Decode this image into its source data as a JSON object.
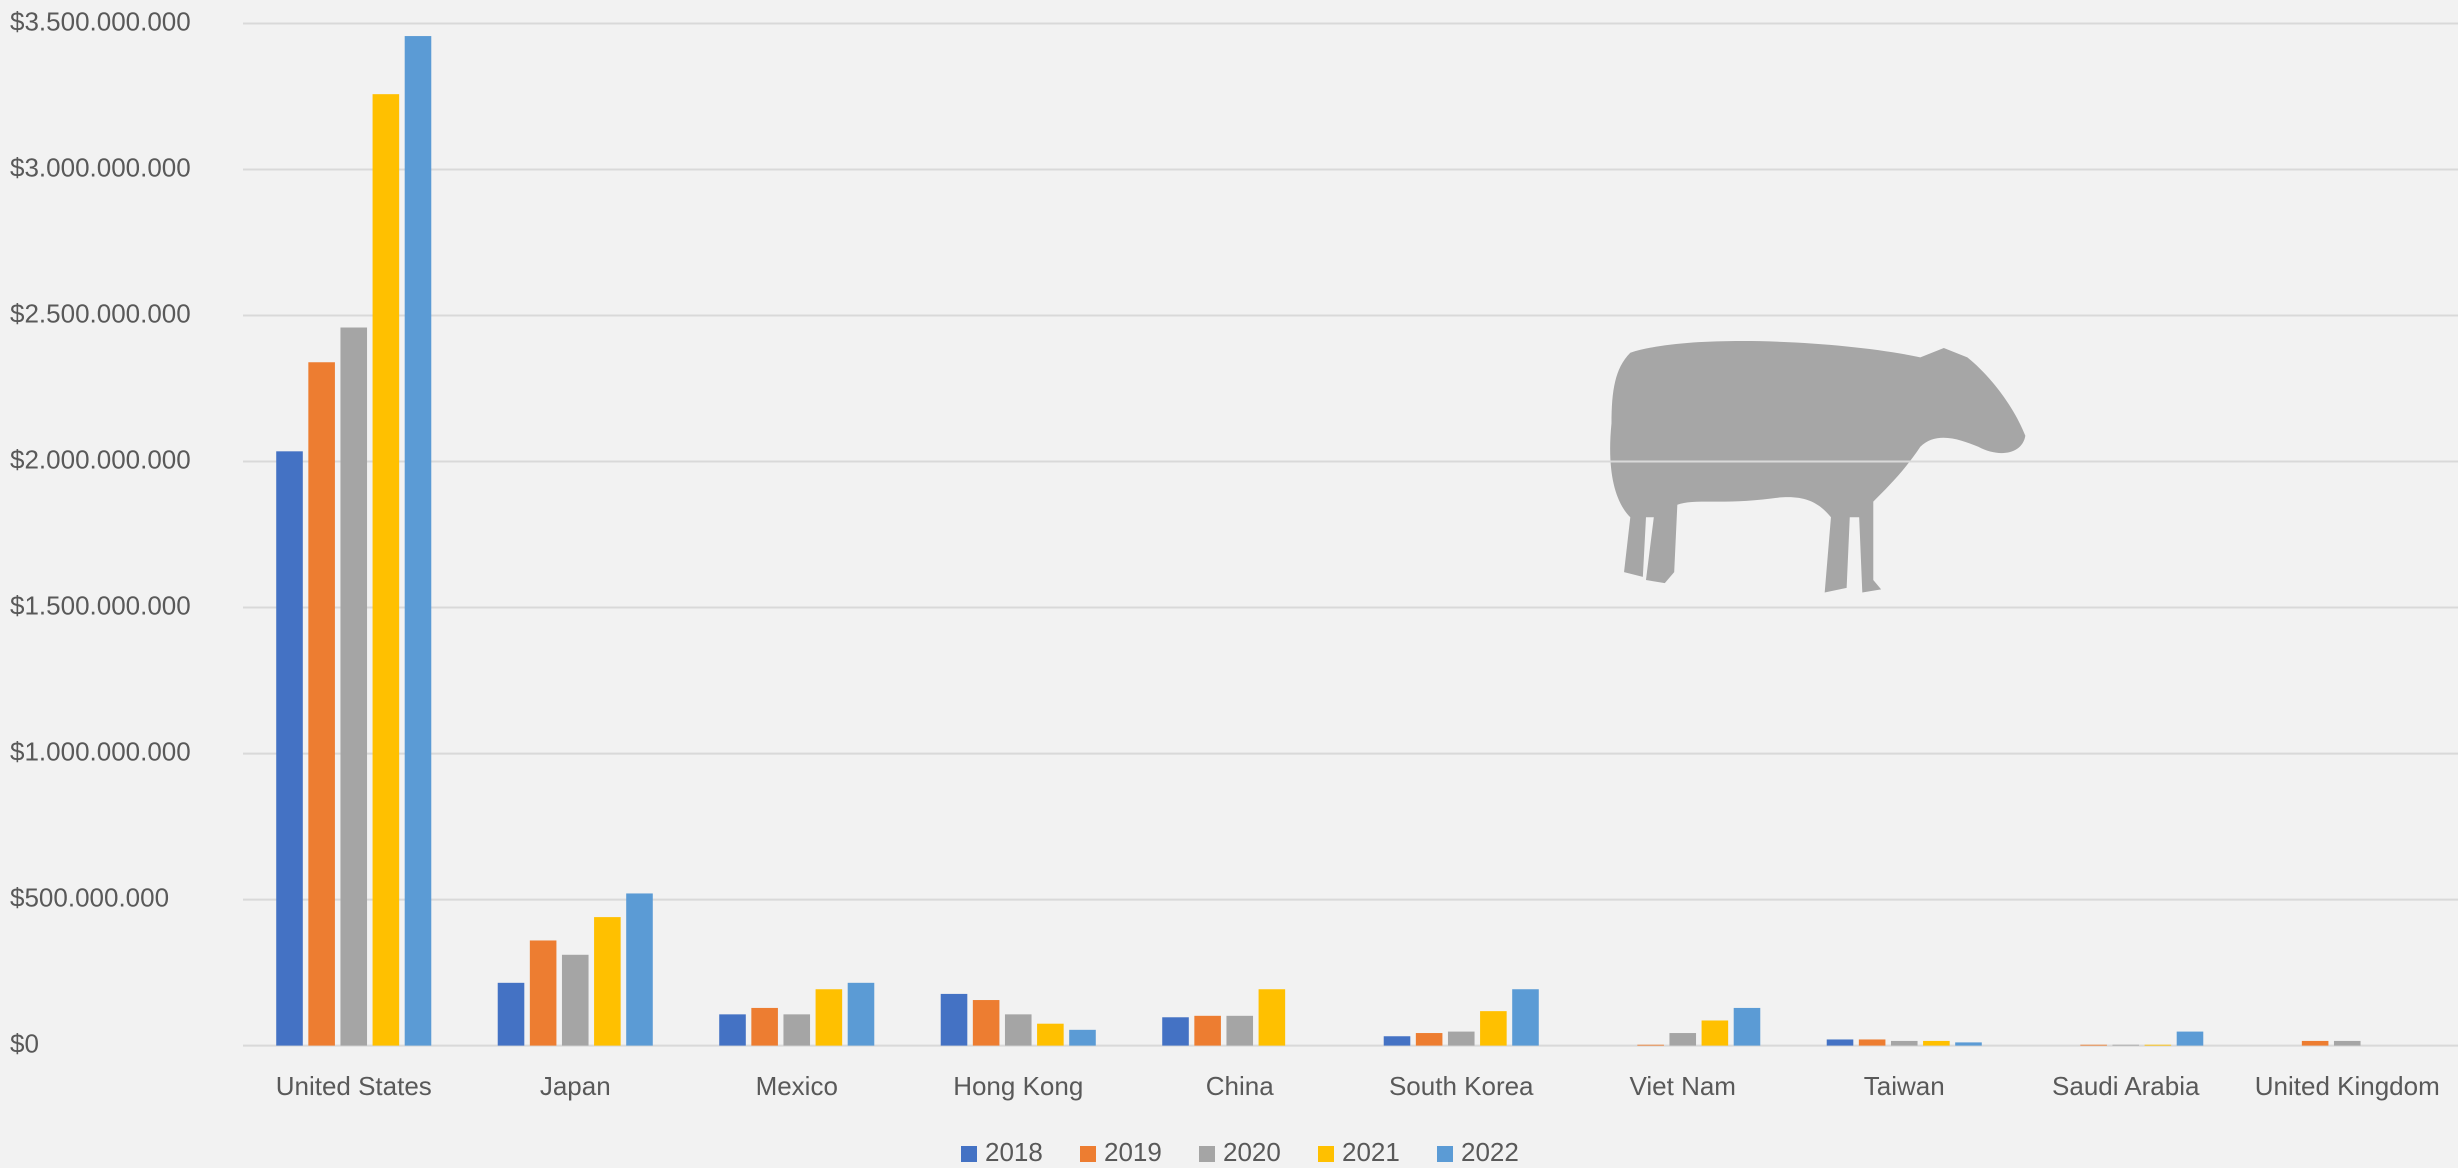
{
  "chart_data": {
    "type": "bar",
    "categories": [
      "United States",
      "Japan",
      "Mexico",
      "Hong Kong",
      "China",
      "South Korea",
      "Viet Nam",
      "Taiwan",
      "Saudi Arabia",
      "United Kingdom"
    ],
    "series": [
      {
        "name": "2018",
        "color": "#4472c4",
        "values": [
          2035000000,
          215000000,
          107000000,
          177000000,
          97000000,
          32000000,
          0,
          21000000,
          0,
          0
        ]
      },
      {
        "name": "2019",
        "color": "#ed7d31",
        "values": [
          2340000000,
          360000000,
          129000000,
          156000000,
          102000000,
          43000000,
          3000000,
          21000000,
          3000000,
          16000000
        ]
      },
      {
        "name": "2020",
        "color": "#a5a5a5",
        "values": [
          2459000000,
          311000000,
          107000000,
          107000000,
          102000000,
          48000000,
          43000000,
          16000000,
          3000000,
          16000000
        ]
      },
      {
        "name": "2021",
        "color": "#ffc000",
        "values": [
          3258000000,
          440000000,
          193000000,
          75000000,
          193000000,
          118000000,
          86000000,
          16000000,
          3000000,
          0
        ]
      },
      {
        "name": "2022",
        "color": "#5b9bd5",
        "values": [
          3457000000,
          521000000,
          215000000,
          54000000,
          0,
          193000000,
          129000000,
          11000000,
          48000000,
          0
        ]
      }
    ],
    "ylim": [
      0,
      3500000000
    ],
    "yticks": [
      {
        "value": 0,
        "label": "$0"
      },
      {
        "value": 500000000,
        "label": "$500.000.000"
      },
      {
        "value": 1000000000,
        "label": "$1.000.000.000"
      },
      {
        "value": 1500000000,
        "label": "$1.500.000.000"
      },
      {
        "value": 2000000000,
        "label": "$2.000.000.000"
      },
      {
        "value": 2500000000,
        "label": "$2.500.000.000"
      },
      {
        "value": 3000000000,
        "label": "$3.000.000.000"
      },
      {
        "value": 3500000000,
        "label": "$3.500.000.000"
      }
    ],
    "grid": true,
    "legend": "bottom"
  }
}
